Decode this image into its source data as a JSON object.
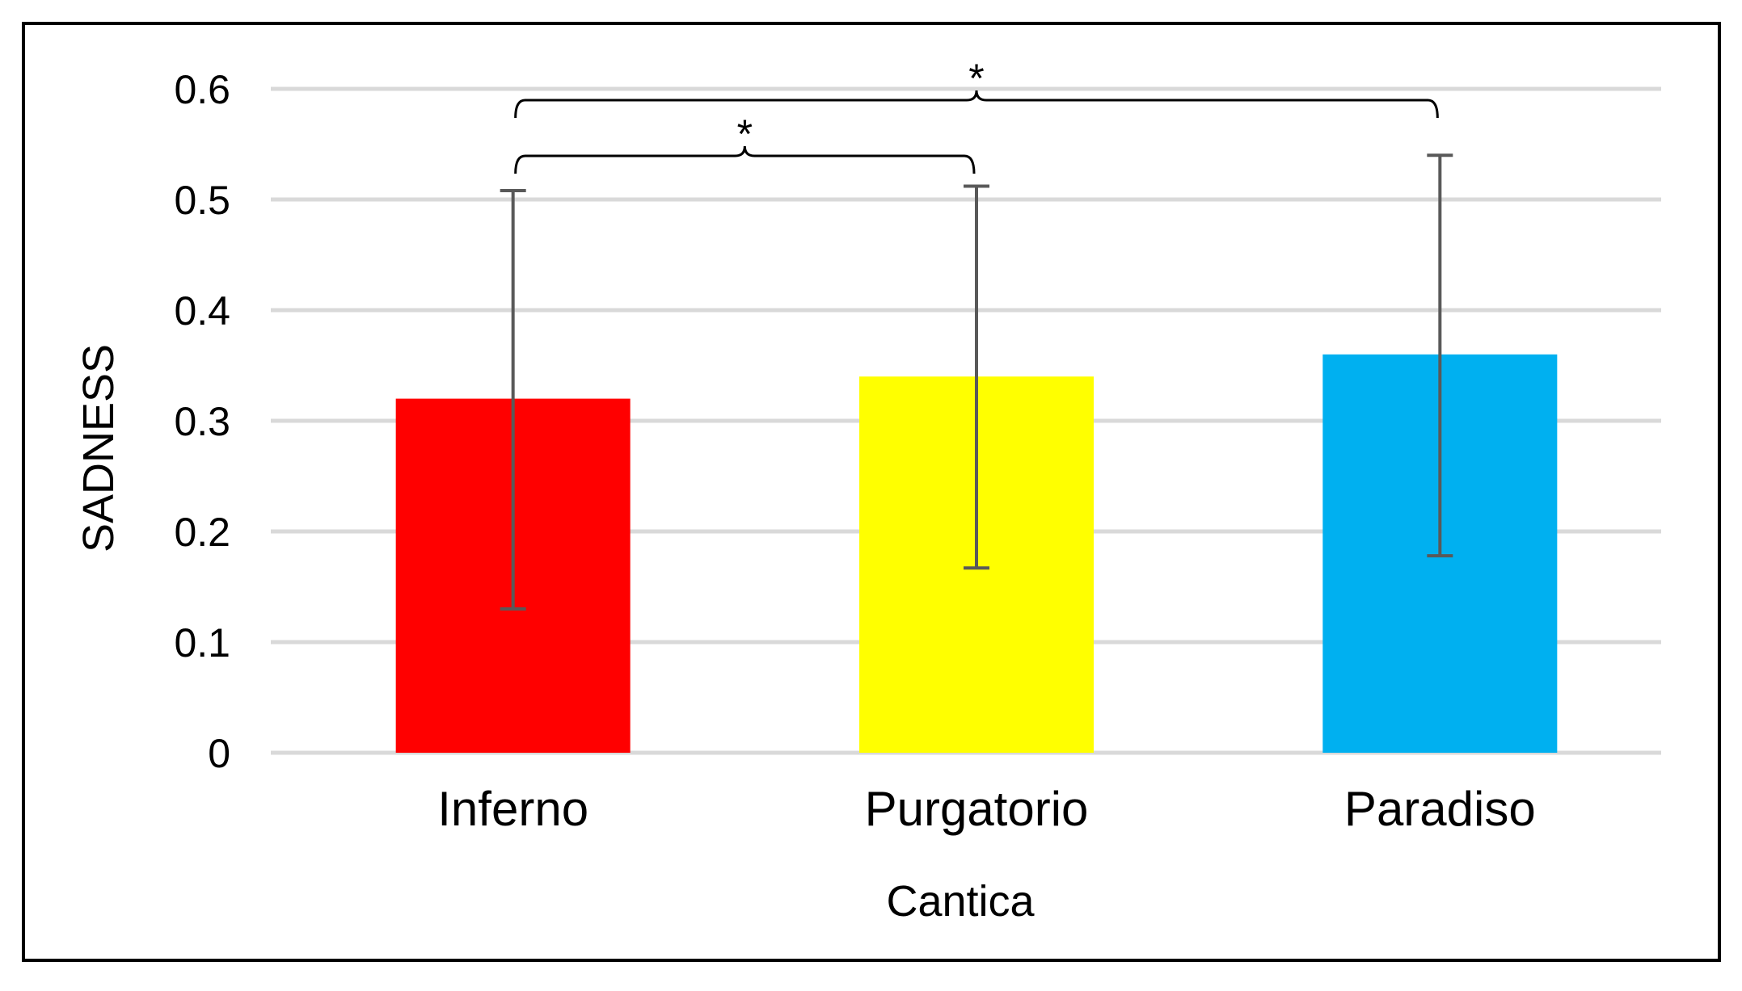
{
  "chart_data": {
    "type": "bar",
    "title": "",
    "xlabel": "Cantica",
    "ylabel": "SADNESS",
    "categories": [
      "Inferno",
      "Purgatorio",
      "Paradiso"
    ],
    "values": [
      0.32,
      0.34,
      0.36
    ],
    "error_low": [
      0.13,
      0.167,
      0.178
    ],
    "error_high": [
      0.508,
      0.512,
      0.54
    ],
    "colors": [
      "#ff0000",
      "#ffff00",
      "#00b0f0"
    ],
    "ylim": [
      0,
      0.6
    ],
    "yticks": [
      "0",
      "0.1",
      "0.2",
      "0.3",
      "0.4",
      "0.5",
      "0.6"
    ],
    "grid": true,
    "error_bar_color": "#595959",
    "gridline_color": "#d9d9d9",
    "annotations": [
      {
        "label": "*",
        "from": "Inferno",
        "to": "Purgatorio"
      },
      {
        "label": "*",
        "from": "Inferno",
        "to": "Paradiso"
      }
    ]
  }
}
